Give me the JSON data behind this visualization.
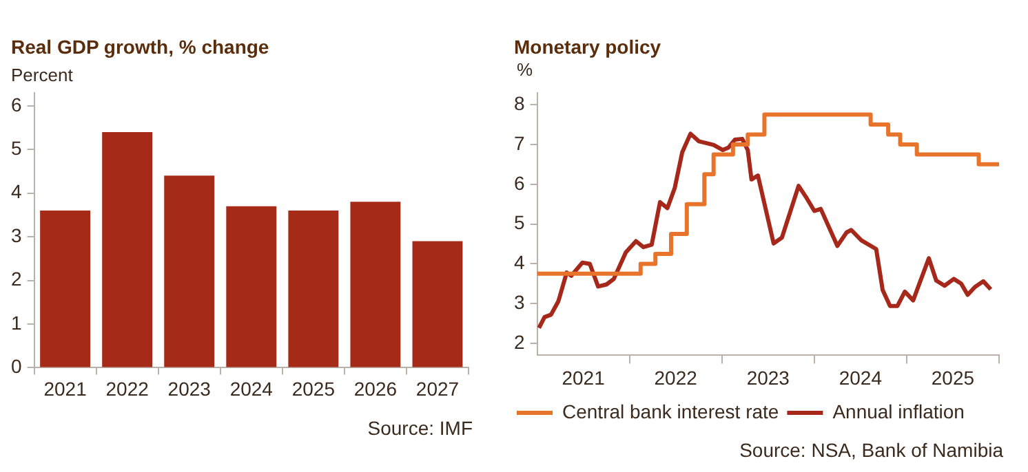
{
  "chart_data": [
    {
      "type": "bar",
      "title": "Real GDP growth, % change",
      "ylabel": "Percent",
      "categories": [
        "2021",
        "2022",
        "2023",
        "2024",
        "2025",
        "2026",
        "2027"
      ],
      "values": [
        3.6,
        5.4,
        4.4,
        3.7,
        3.6,
        3.8,
        2.9
      ],
      "color": "#a52a17",
      "ylim": [
        0,
        6.3
      ],
      "yticks": [
        0,
        1,
        2,
        3,
        4,
        5,
        6
      ],
      "grid": false,
      "legend": false,
      "annotations": [
        "Source: IMF"
      ]
    },
    {
      "type": "line",
      "title": "Monetary policy",
      "ylabel": "%",
      "xlim": [
        2021,
        2026
      ],
      "xticks": [
        {
          "value": 2021.5,
          "label": "2021"
        },
        {
          "value": 2022,
          "label": null
        },
        {
          "value": 2022.5,
          "label": "2022"
        },
        {
          "value": 2023,
          "label": null
        },
        {
          "value": 2023.5,
          "label": "2023"
        },
        {
          "value": 2024,
          "label": null
        },
        {
          "value": 2024.5,
          "label": "2024"
        },
        {
          "value": 2025,
          "label": null
        },
        {
          "value": 2025.5,
          "label": "2025"
        },
        {
          "value": 2026,
          "label": null
        }
      ],
      "ylim": [
        1.7,
        8.3
      ],
      "yticks": [
        2,
        3,
        4,
        5,
        6,
        7,
        8
      ],
      "grid": false,
      "legend": "bottom",
      "annotations": [
        "Source: NSA, Bank of Namibia"
      ],
      "series": [
        {
          "name": "Central bank interest rate",
          "type": "step",
          "color": "#e8742b",
          "x": [
            2021,
            2022.12,
            2022.28,
            2022.45,
            2022.62,
            2022.81,
            2022.91,
            2023.12,
            2023.28,
            2023.46,
            2024.61,
            2024.8,
            2024.93,
            2025.11,
            2025.78,
            2026
          ],
          "values": [
            3.75,
            4,
            4.25,
            4.75,
            5.5,
            6.25,
            6.75,
            7,
            7.25,
            7.75,
            7.5,
            7.25,
            7,
            6.75,
            6.5,
            6.5
          ]
        },
        {
          "name": "Annual inflation",
          "type": "line",
          "color": "#a5281b",
          "x": [
            2021.02,
            2021.08,
            2021.15,
            2021.23,
            2021.32,
            2021.37,
            2021.49,
            2021.57,
            2021.66,
            2021.75,
            2021.83,
            2021.96,
            2022.07,
            2022.15,
            2022.24,
            2022.33,
            2022.41,
            2022.49,
            2022.57,
            2022.66,
            2022.75,
            2022.91,
            2023.01,
            2023.07,
            2023.14,
            2023.22,
            2023.28,
            2023.32,
            2023.39,
            2023.56,
            2023.65,
            2023.83,
            2023.91,
            2024,
            2024.07,
            2024.25,
            2024.35,
            2024.4,
            2024.51,
            2024.67,
            2024.74,
            2024.82,
            2024.9,
            2024.98,
            2025.07,
            2025.24,
            2025.32,
            2025.41,
            2025.51,
            2025.59,
            2025.66,
            2025.74,
            2025.83,
            2025.91
          ],
          "values": [
            2.39,
            2.66,
            2.72,
            3.06,
            3.78,
            3.7,
            4.03,
            4.0,
            3.43,
            3.48,
            3.62,
            4.29,
            4.57,
            4.42,
            4.48,
            5.55,
            5.4,
            5.91,
            6.8,
            7.27,
            7.08,
            6.99,
            6.86,
            6.92,
            7.12,
            7.14,
            6.86,
            6.12,
            6.22,
            4.51,
            4.66,
            5.96,
            5.68,
            5.33,
            5.38,
            4.45,
            4.79,
            4.85,
            4.59,
            4.37,
            3.34,
            2.94,
            2.94,
            3.3,
            3.08,
            4.14,
            3.58,
            3.45,
            3.62,
            3.5,
            3.22,
            3.42,
            3.56,
            3.36
          ]
        }
      ]
    }
  ]
}
